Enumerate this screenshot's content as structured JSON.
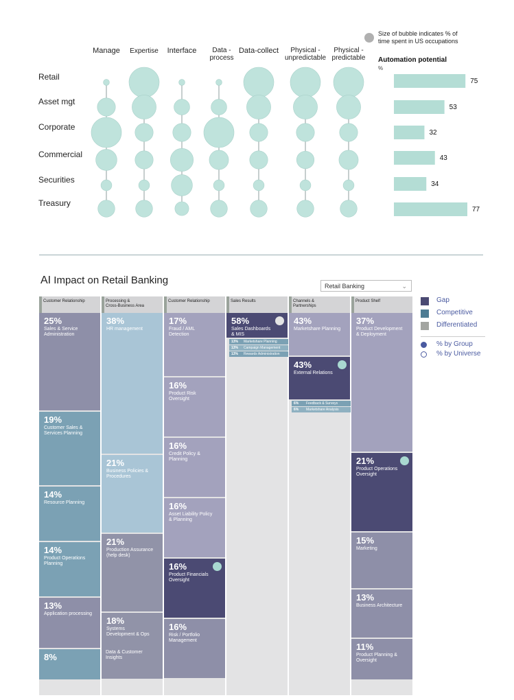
{
  "chart_data": [
    {
      "type": "bubble-matrix",
      "columns": [
        "Manage",
        "Expertise",
        "Interface",
        "Data -\nprocess",
        "Data-collect",
        "Physical -\nunpredictable",
        "Physical -\npredictable"
      ],
      "rows": [
        "Retail",
        "Asset mgt",
        "Corporate",
        "Commercial",
        "Securities",
        "Treasury"
      ],
      "bubble_sizes": [
        [
          1,
          5,
          1,
          1,
          5,
          5,
          5
        ],
        [
          3,
          4,
          2.6,
          2.6,
          4,
          4,
          4
        ],
        [
          5,
          3,
          3,
          5,
          3,
          3,
          3
        ],
        [
          3.5,
          3,
          3.8,
          3.2,
          3,
          2.9,
          3.2
        ],
        [
          1.8,
          1.8,
          3.5,
          1.8,
          1.8,
          1.8,
          1.8
        ],
        [
          2.8,
          2.8,
          2.3,
          2.8,
          2.8,
          2.8,
          2.8
        ]
      ],
      "legend_note": "Size of bubble indicates % of time spent in US occupations",
      "bar_title": "Automation potential",
      "bar_unit": "%",
      "bar_values": [
        75,
        53,
        32,
        43,
        34,
        77
      ],
      "colors": {
        "bubble": "#bfe3dc",
        "bar": "#b4ddd5",
        "legend_bubble": "#b0b0b0"
      }
    },
    {
      "type": "treemap-columns",
      "title_prefix": "AI",
      "title": "Impact on Retail Banking",
      "dropdown_value": "Retail Banking",
      "legend": [
        {
          "name": "Gap",
          "color": "#4b4a73"
        },
        {
          "name": "Competitive",
          "color": "#4e7c93"
        },
        {
          "name": "Differentiated",
          "color": "#a3a5a1"
        }
      ],
      "radio_legend": [
        "% by Group",
        "% by Universe"
      ],
      "columns": [
        {
          "header": "Customer Relationship",
          "tiles": [
            {
              "pct": "25%",
              "label": "Sales & Service\nAdministration",
              "color": "#8e8fa8",
              "value": 25
            },
            {
              "pct": "19%",
              "label": "Customer Sales &\nServices Planning",
              "color": "#7ba1b4",
              "value": 19
            },
            {
              "pct": "14%",
              "label": "Resource Planning",
              "color": "#7ba1b4",
              "value": 14
            },
            {
              "pct": "14%",
              "label": "Product Operations\nPlanning",
              "color": "#7ba1b4",
              "value": 14
            },
            {
              "pct": "13%",
              "label": "Application processing",
              "color": "#8e8fa8",
              "value": 13
            },
            {
              "pct": "8%",
              "label": "",
              "color": "#7ba1b4",
              "value": 8
            }
          ]
        },
        {
          "header": "Processing &\nCross-Business Area",
          "tiles": [
            {
              "pct": "38%",
              "label": "HR management",
              "color": "#a9c5d6",
              "value": 38
            },
            {
              "pct": "21%",
              "label": "Business Policies &\nProcedures",
              "color": "#a9c5d6",
              "value": 21
            },
            {
              "pct": "21%",
              "label": "Production Assurance\n(help desk)",
              "color": "#9193a8",
              "value": 21
            },
            {
              "pct": "18%",
              "label": "Systems\nDevelopment & Ops",
              "color": "#9193a8",
              "value": 18
            }
          ],
          "faded_text": "Data & Customer\nInsights"
        },
        {
          "header": "Customer Relationship",
          "tiles": [
            {
              "pct": "17%",
              "label": "Fraud / AML\nDetection",
              "color": "#a3a2bd",
              "value": 17
            },
            {
              "pct": "16%",
              "label": "Product Risk\nOversight",
              "color": "#a3a2bd",
              "value": 16
            },
            {
              "pct": "16%",
              "label": "Credit Policy &\nPlanning",
              "color": "#a3a2bd",
              "value": 16
            },
            {
              "pct": "16%",
              "label": "Asset Liability Policy\n& Planning",
              "color": "#a3a2bd",
              "value": 16
            },
            {
              "pct": "16%",
              "label": "Product Financials\nOversight",
              "color": "#4b4a73",
              "value": 16,
              "dot": true
            },
            {
              "pct": "16%",
              "label": "Risk / Portfolio\nManagement",
              "color": "#8e8fa8",
              "value": 16
            }
          ]
        },
        {
          "header": "Sales Results",
          "tiles": [
            {
              "pct": "58%",
              "label": "Sales Dashboards\n& MIS",
              "color": "#4b4a73",
              "value": 58,
              "dot": true,
              "dot_color": "#e3e3e4"
            }
          ],
          "subs": [
            {
              "pct": "13%",
              "label": "Marketshare Planning"
            },
            {
              "pct": "13%",
              "label": "Campaign Management"
            },
            {
              "pct": "13%",
              "label": "Rewards Administration"
            }
          ]
        },
        {
          "header": "Channels &\nPartnerships",
          "tiles": [
            {
              "pct": "43%",
              "label": "Marketshare Planning",
              "color": "#a3a2bd",
              "value": 43
            },
            {
              "pct": "43%",
              "label": "External Relations",
              "color": "#4b4a73",
              "value": 43,
              "dot": true
            }
          ],
          "subs": [
            {
              "pct": "6%",
              "label": "Feedback & Surveys"
            },
            {
              "pct": "6%",
              "label": "Marketshare Analysis"
            }
          ]
        },
        {
          "header": "Product Shelf",
          "tiles": [
            {
              "pct": "37%",
              "label": "Product Development\n& Deployment",
              "color": "#a3a2bd",
              "value": 37
            },
            {
              "pct": "21%",
              "label": "Product Operations\nOversight",
              "color": "#4b4a73",
              "value": 21,
              "dot": true
            },
            {
              "pct": "15%",
              "label": "Marketing",
              "color": "#8e8fa8",
              "value": 15
            },
            {
              "pct": "13%",
              "label": "Business Architecture",
              "color": "#8e8fa8",
              "value": 13
            },
            {
              "pct": "11%",
              "label": "Product Planning &\nOversight",
              "color": "#8e8fa8",
              "value": 11
            }
          ]
        }
      ]
    }
  ]
}
